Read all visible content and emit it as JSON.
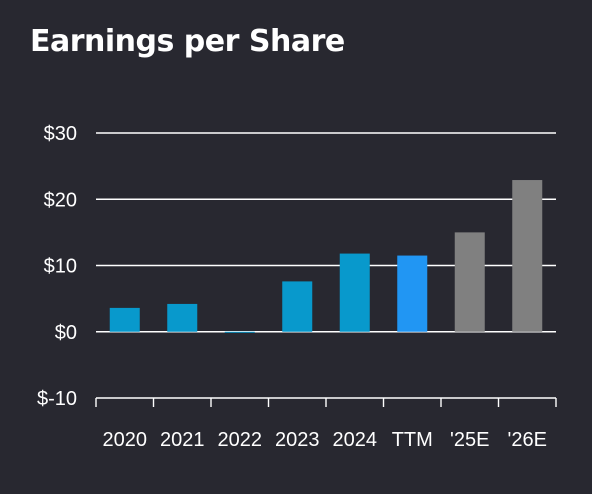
{
  "chart_data": {
    "type": "bar",
    "title": "Earnings per Share",
    "xlabel": "",
    "ylabel": "",
    "categories": [
      "2020",
      "2021",
      "2022",
      "2023",
      "2024",
      "TTM",
      "'25E",
      "'26E"
    ],
    "values": [
      3.6,
      4.2,
      -0.1,
      7.6,
      11.8,
      11.5,
      15.0,
      22.9
    ],
    "bar_colors": [
      "#0899cc",
      "#0899cc",
      "#0899cc",
      "#0899cc",
      "#0899cc",
      "#2196f3",
      "#808080",
      "#808080"
    ],
    "ylim": [
      -10,
      30
    ],
    "yticks": [
      -10,
      0,
      10,
      20,
      30
    ],
    "ytick_labels": [
      "$-10",
      "$0",
      "$10",
      "$20",
      "$30"
    ],
    "grid": true,
    "legend": "none"
  },
  "colors": {
    "background": "#282830",
    "gridline": "#ffffff",
    "text": "#ffffff"
  }
}
